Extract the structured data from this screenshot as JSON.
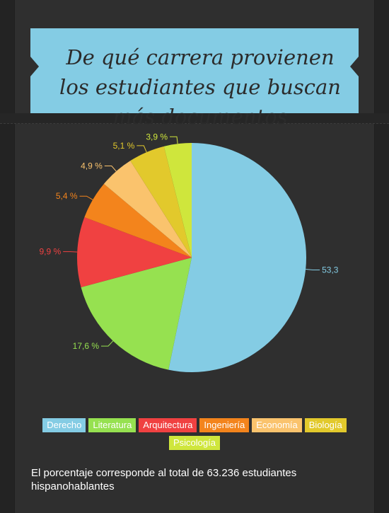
{
  "title": "De qué carrera provienen los estudiantes que buscan más documentos",
  "chart_data": {
    "type": "pie",
    "categories": [
      "Derecho",
      "Literatura",
      "Arquitectura",
      "Ingeniería",
      "Economía",
      "Biología",
      "Psicología"
    ],
    "values": [
      53.3,
      17.6,
      9.9,
      5.4,
      4.9,
      5.1,
      3.9
    ],
    "labels": [
      "53,3",
      "17,6 %",
      "9,9 %",
      "5,4 %",
      "4,9 %",
      "5,1 %",
      "3,9 %"
    ],
    "colors": [
      "#84cce4",
      "#96e150",
      "#f04141",
      "#f3841c",
      "#fac36d",
      "#e2c92c",
      "#cfe63c"
    ],
    "legend": "bottom"
  },
  "footnote": "El porcentaje corresponde al total de 63.236 estudiantes hispanohablantes"
}
